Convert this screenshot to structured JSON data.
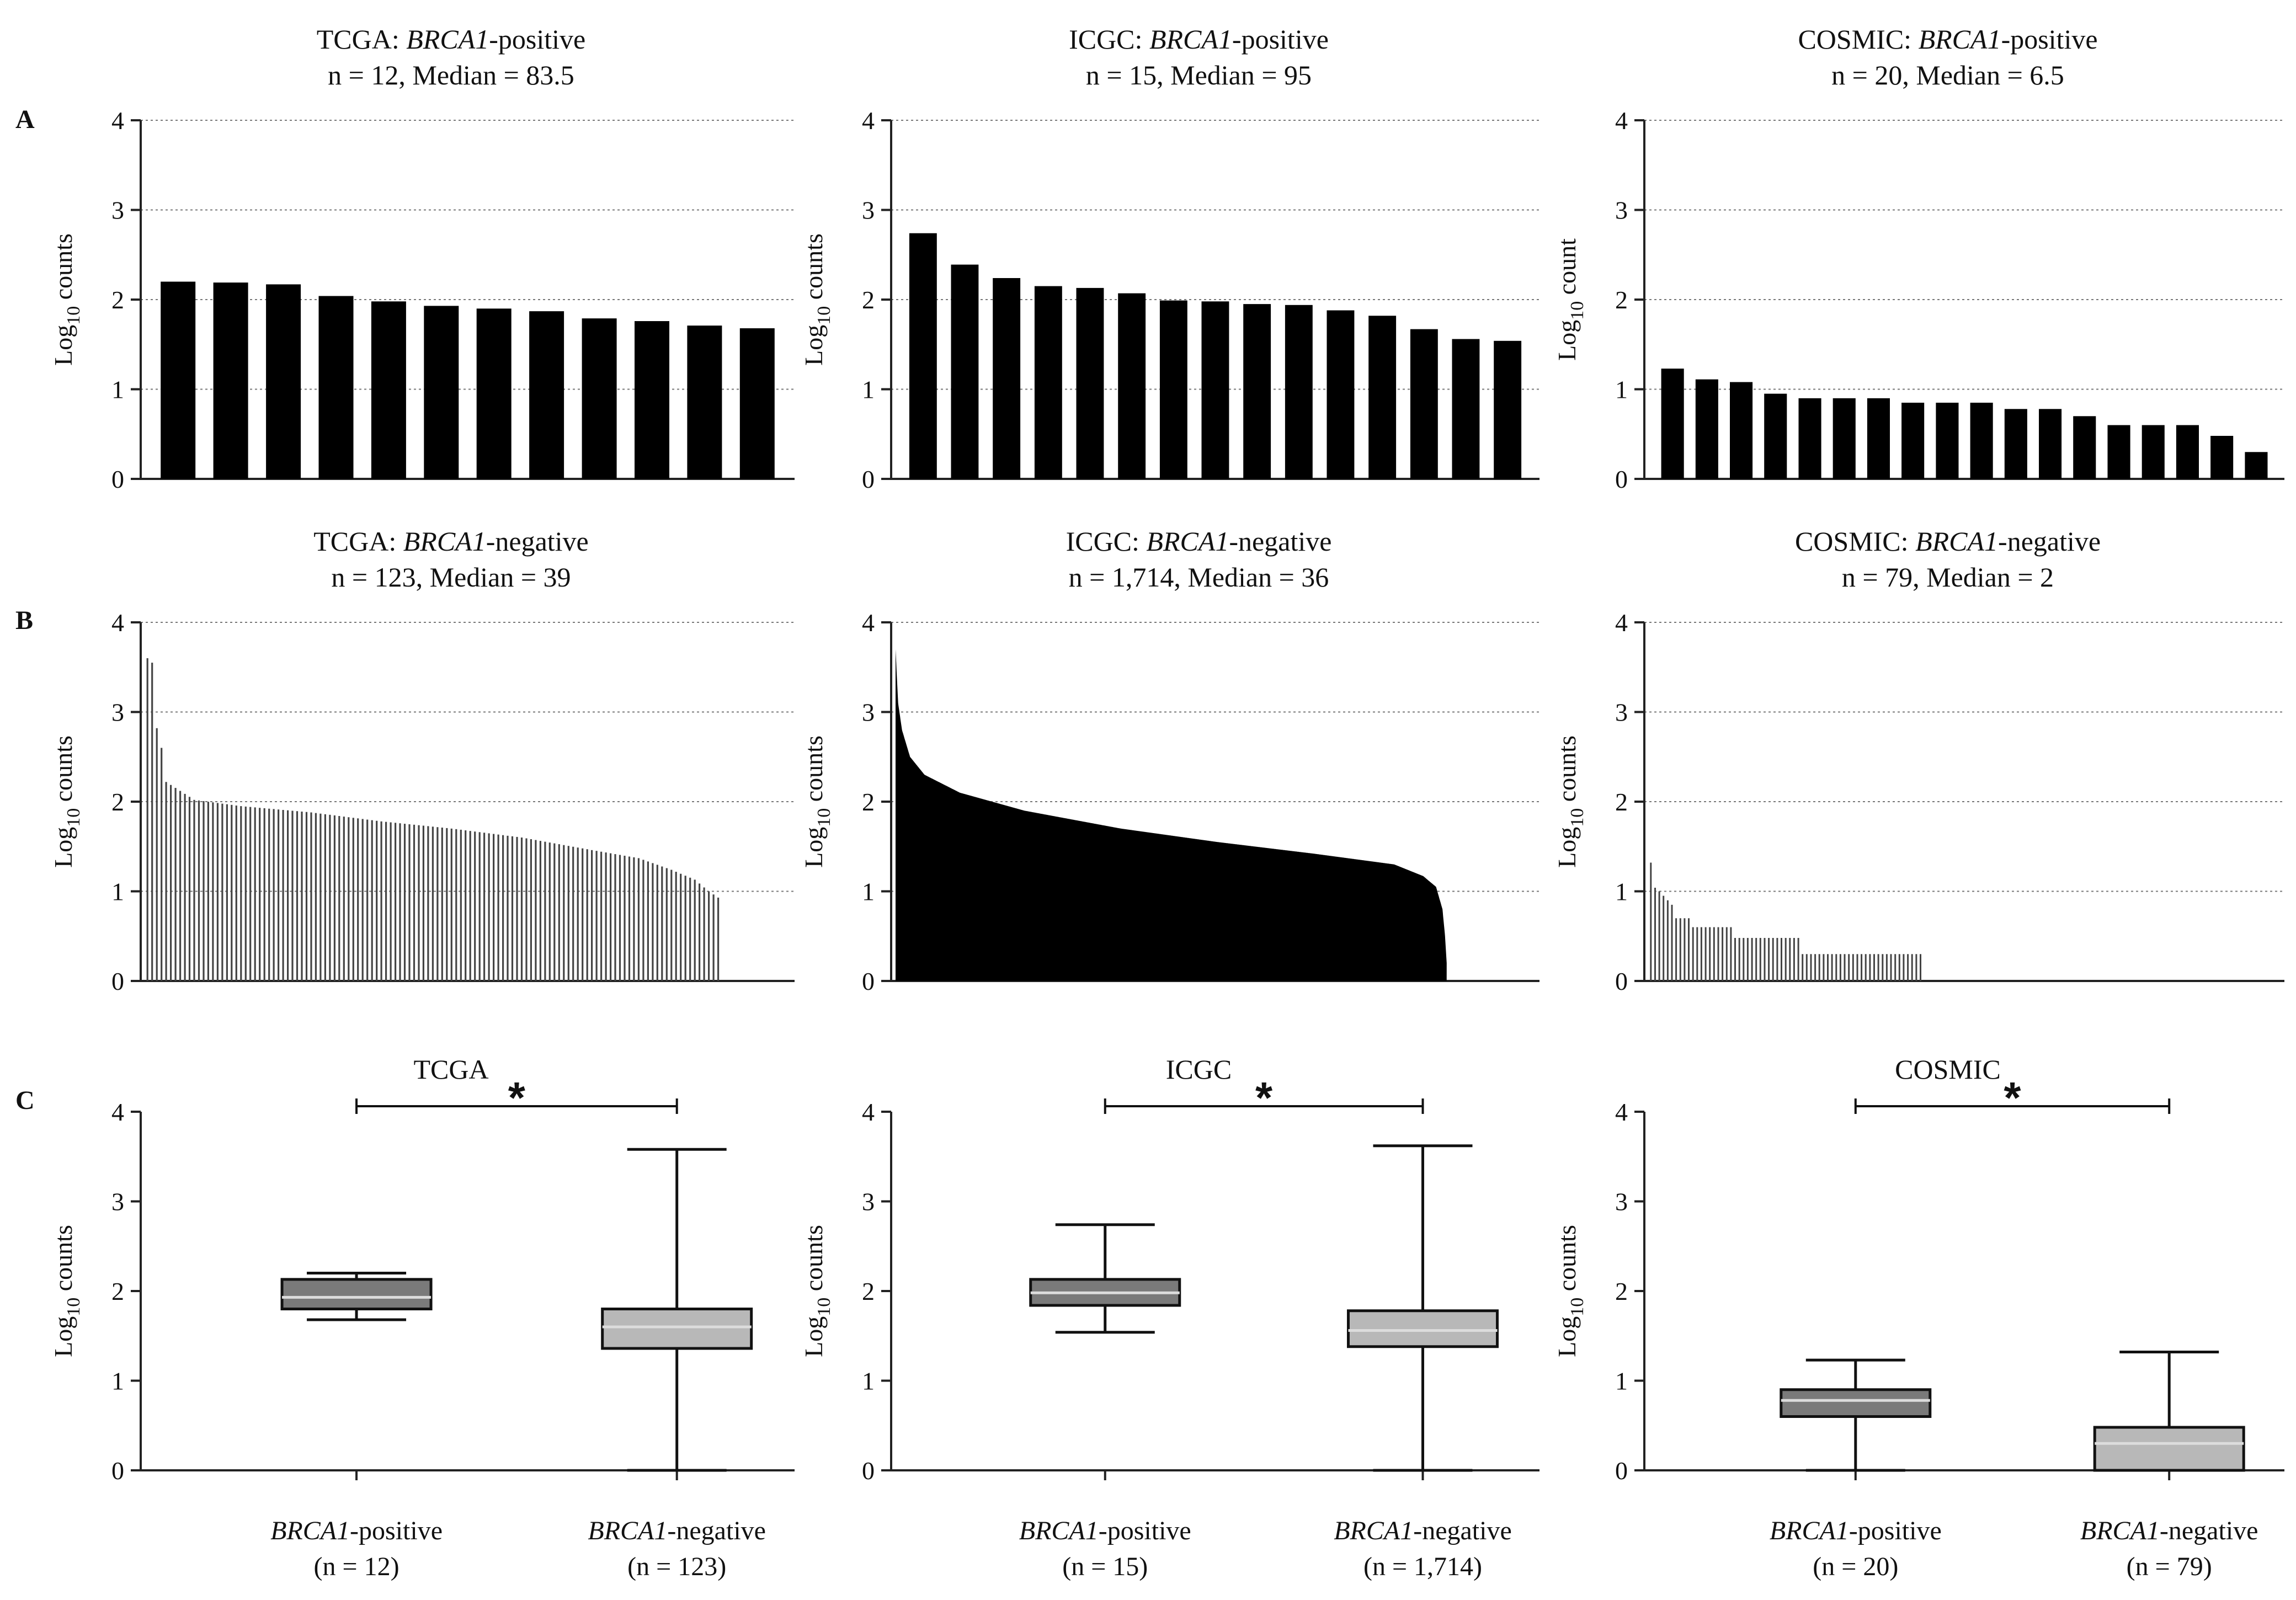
{
  "panel_labels": [
    "A",
    "B",
    "C"
  ],
  "chart_data": [
    {
      "panel": "A",
      "type": "bar",
      "title_prefix": "TCGA: ",
      "title_gene": "BRCA1",
      "title_suffix": "-positive",
      "subtitle": "n = 12, Median = 83.5",
      "ylabel": "Log10 counts",
      "ylim": [
        0,
        4
      ],
      "yticks": [
        0,
        1,
        2,
        3,
        4
      ],
      "grid": true,
      "values": [
        2.2,
        2.19,
        2.17,
        2.04,
        1.98,
        1.93,
        1.9,
        1.87,
        1.79,
        1.76,
        1.71,
        1.68
      ]
    },
    {
      "panel": "A",
      "type": "bar",
      "title_prefix": "ICGC: ",
      "title_gene": "BRCA1",
      "title_suffix": "-positive",
      "subtitle": "n = 15, Median = 95",
      "ylabel": "Log10 counts",
      "ylim": [
        0,
        4
      ],
      "yticks": [
        0,
        1,
        2,
        3,
        4
      ],
      "grid": true,
      "values": [
        2.74,
        2.39,
        2.24,
        2.15,
        2.13,
        2.07,
        1.99,
        1.98,
        1.95,
        1.94,
        1.88,
        1.82,
        1.67,
        1.56,
        1.54
      ]
    },
    {
      "panel": "A",
      "type": "bar",
      "title_prefix": "COSMIC: ",
      "title_gene": "BRCA1",
      "title_suffix": "-positive",
      "subtitle": "n = 20, Median = 6.5",
      "ylabel": "Log10 count",
      "ylim": [
        0,
        4
      ],
      "yticks": [
        0,
        1,
        2,
        3,
        4
      ],
      "grid": true,
      "values": [
        1.23,
        1.11,
        1.08,
        0.95,
        0.9,
        0.9,
        0.9,
        0.85,
        0.85,
        0.85,
        0.78,
        0.78,
        0.7,
        0.6,
        0.6,
        0.6,
        0.48,
        0.3
      ]
    },
    {
      "panel": "B",
      "type": "bar",
      "title_prefix": "TCGA: ",
      "title_gene": "BRCA1",
      "title_suffix": "-negative",
      "subtitle": "n = 123, Median = 39",
      "ylabel": "Log10 counts",
      "ylim": [
        0,
        4
      ],
      "yticks": [
        0,
        1,
        2,
        3,
        4
      ],
      "grid": true,
      "n": 123,
      "profile": [
        [
          0,
          3.6
        ],
        [
          1,
          3.55
        ],
        [
          2,
          2.82
        ],
        [
          3,
          2.6
        ],
        [
          4,
          2.22
        ],
        [
          7,
          2.12
        ],
        [
          10,
          2.02
        ],
        [
          20,
          1.95
        ],
        [
          35,
          1.88
        ],
        [
          50,
          1.78
        ],
        [
          65,
          1.7
        ],
        [
          80,
          1.6
        ],
        [
          95,
          1.46
        ],
        [
          105,
          1.37
        ],
        [
          112,
          1.24
        ],
        [
          117,
          1.13
        ],
        [
          120,
          1.0
        ],
        [
          122,
          0.93
        ]
      ]
    },
    {
      "panel": "B",
      "type": "area",
      "title_prefix": "ICGC: ",
      "title_gene": "BRCA1",
      "title_suffix": "-negative",
      "subtitle": "n = 1,714, Median = 36",
      "ylabel": "Log10 counts",
      "ylim": [
        0,
        4
      ],
      "yticks": [
        0,
        1,
        2,
        3,
        4
      ],
      "grid": true,
      "n": 1714,
      "profile": [
        [
          0,
          3.7
        ],
        [
          8,
          3.1
        ],
        [
          20,
          2.8
        ],
        [
          45,
          2.5
        ],
        [
          90,
          2.3
        ],
        [
          200,
          2.1
        ],
        [
          400,
          1.9
        ],
        [
          700,
          1.7
        ],
        [
          1000,
          1.55
        ],
        [
          1300,
          1.42
        ],
        [
          1550,
          1.3
        ],
        [
          1640,
          1.17
        ],
        [
          1680,
          1.05
        ],
        [
          1700,
          0.8
        ],
        [
          1708,
          0.5
        ],
        [
          1713,
          0.2
        ]
      ]
    },
    {
      "panel": "B",
      "type": "bar",
      "title_prefix": "COSMIC: ",
      "title_gene": "BRCA1",
      "title_suffix": "-negative",
      "subtitle": "n = 79, Median = 2",
      "ylabel": "Log10 counts",
      "ylim": [
        0,
        4
      ],
      "yticks": [
        0,
        1,
        2,
        3,
        4
      ],
      "grid": true,
      "n": 79,
      "values": [
        1.32,
        1.04,
        1.0,
        0.95,
        0.9,
        0.85,
        0.7,
        0.7,
        0.7,
        0.7,
        0.6,
        0.6,
        0.6,
        0.6,
        0.6,
        0.6,
        0.6,
        0.6,
        0.6,
        0.6,
        0.48,
        0.48,
        0.48,
        0.48,
        0.48,
        0.48,
        0.48,
        0.48,
        0.48,
        0.48,
        0.48,
        0.48,
        0.48,
        0.48,
        0.48,
        0.48,
        0.3,
        0.3,
        0.3,
        0.3,
        0.3,
        0.3,
        0.3,
        0.3,
        0.3,
        0.3,
        0.3,
        0.3,
        0.3,
        0.3,
        0.3,
        0.3,
        0.3,
        0.3,
        0.3,
        0.3,
        0.3,
        0.3,
        0.3,
        0.3,
        0.3,
        0.3,
        0.3,
        0.3,
        0.3
      ]
    },
    {
      "panel": "C",
      "type": "boxplot",
      "title": "TCGA",
      "ylabel": "Log10 counts",
      "ylim": [
        0,
        4
      ],
      "yticks": [
        0,
        1,
        2,
        3,
        4
      ],
      "significance": "*",
      "categories": [
        {
          "gene": "BRCA1",
          "label": "-positive",
          "n": "(n = 12)"
        },
        {
          "gene": "BRCA1",
          "label": "-negative",
          "n": "(n = 123)"
        }
      ],
      "boxes": [
        {
          "min": 1.68,
          "q1": 1.8,
          "median": 1.93,
          "q3": 2.13,
          "max": 2.2,
          "color": "#7a7a7a"
        },
        {
          "min": 0.0,
          "q1": 1.36,
          "median": 1.6,
          "q3": 1.8,
          "max": 3.58,
          "color": "#b8b8b8"
        }
      ]
    },
    {
      "panel": "C",
      "type": "boxplot",
      "title": "ICGC",
      "ylabel": "Log10 counts",
      "ylim": [
        0,
        4
      ],
      "yticks": [
        0,
        1,
        2,
        3,
        4
      ],
      "significance": "*",
      "categories": [
        {
          "gene": "BRCA1",
          "label": "-positive",
          "n": "(n = 15)"
        },
        {
          "gene": "BRCA1",
          "label": "-negative",
          "n": "(n = 1,714)"
        }
      ],
      "boxes": [
        {
          "min": 1.54,
          "q1": 1.84,
          "median": 1.98,
          "q3": 2.13,
          "max": 2.74,
          "color": "#7a7a7a"
        },
        {
          "min": 0.0,
          "q1": 1.38,
          "median": 1.56,
          "q3": 1.78,
          "max": 3.62,
          "color": "#b8b8b8"
        }
      ]
    },
    {
      "panel": "C",
      "type": "boxplot",
      "title": "COSMIC",
      "ylabel": "Log10 counts",
      "ylim": [
        0,
        4
      ],
      "yticks": [
        0,
        1,
        2,
        3,
        4
      ],
      "significance": "*",
      "categories": [
        {
          "gene": "BRCA1",
          "label": "-positive",
          "n": "(n = 20)"
        },
        {
          "gene": "BRCA1",
          "label": "-negative",
          "n": "(n = 79)"
        }
      ],
      "boxes": [
        {
          "min": 0.0,
          "q1": 0.6,
          "median": 0.78,
          "q3": 0.9,
          "max": 1.23,
          "color": "#7a7a7a"
        },
        {
          "min": 0.0,
          "q1": 0.0,
          "median": 0.3,
          "q3": 0.48,
          "max": 1.32,
          "color": "#b8b8b8"
        }
      ]
    }
  ]
}
